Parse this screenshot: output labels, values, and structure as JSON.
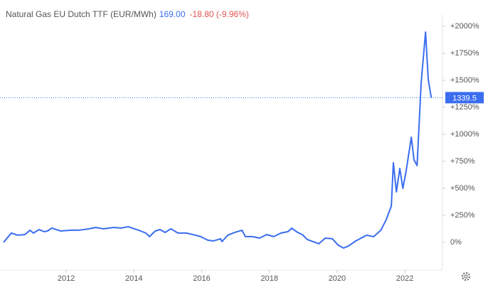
{
  "chart_data": {
    "type": "line",
    "title": "Natural Gas EU Dutch TTF (EUR/MWh)",
    "price": "169.00",
    "change": "-18.80 (-9.96%)",
    "color": "#3a6df0",
    "x": [
      2010.15,
      2010.38,
      2010.57,
      2010.78,
      2010.93,
      2011.03,
      2011.2,
      2011.35,
      2011.45,
      2011.58,
      2011.83,
      2012.15,
      2012.36,
      2012.67,
      2012.88,
      2013.09,
      2013.41,
      2013.62,
      2013.83,
      2014.14,
      2014.35,
      2014.46,
      2014.63,
      2014.77,
      2014.92,
      2015.09,
      2015.3,
      2015.55,
      2015.82,
      2015.97,
      2016.18,
      2016.35,
      2016.56,
      2016.6,
      2016.77,
      2016.98,
      2017.19,
      2017.29,
      2017.5,
      2017.71,
      2017.92,
      2018.13,
      2018.34,
      2018.55,
      2018.66,
      2018.83,
      2018.97,
      2019.12,
      2019.29,
      2019.46,
      2019.65,
      2019.86,
      2020.03,
      2020.19,
      2020.34,
      2020.55,
      2020.87,
      2021.08,
      2021.29,
      2021.45,
      2021.6,
      2021.66,
      2021.75,
      2021.85,
      2021.94,
      2022.04,
      2022.19,
      2022.27,
      2022.36,
      2022.48,
      2022.61,
      2022.69,
      2022.78
    ],
    "values": [
      0,
      86,
      66,
      72,
      112,
      86,
      118,
      99,
      105,
      132,
      105,
      112,
      112,
      125,
      138,
      125,
      138,
      132,
      145,
      112,
      86,
      53,
      105,
      118,
      92,
      125,
      86,
      86,
      66,
      53,
      20,
      13,
      33,
      7,
      66,
      92,
      112,
      53,
      53,
      39,
      72,
      53,
      86,
      99,
      132,
      92,
      72,
      26,
      7,
      -13,
      39,
      33,
      -26,
      -53,
      -33,
      13,
      66,
      53,
      112,
      211,
      336,
      737,
      467,
      684,
      500,
      665,
      974,
      763,
      711,
      1474,
      1947,
      1507,
      1339.5
    ],
    "xlim": [
      2010.15,
      2023.11
    ],
    "xticks": [
      2012,
      2014,
      2016,
      2018,
      2020,
      2022
    ],
    "ylim": [
      -257,
      2099
    ],
    "yticks": [
      {
        "value": 0,
        "label": "0%"
      },
      {
        "value": 250,
        "label": "+250%"
      },
      {
        "value": 500,
        "label": "+500%"
      },
      {
        "value": 750,
        "label": "+750%"
      },
      {
        "value": 1000,
        "label": "+1000%"
      },
      {
        "value": 1250,
        "label": "+1250%"
      },
      {
        "value": 1500,
        "label": "+1500%"
      },
      {
        "value": 1750,
        "label": "+1750%"
      },
      {
        "value": 2000,
        "label": "+2000%"
      }
    ],
    "grid": false
  }
}
